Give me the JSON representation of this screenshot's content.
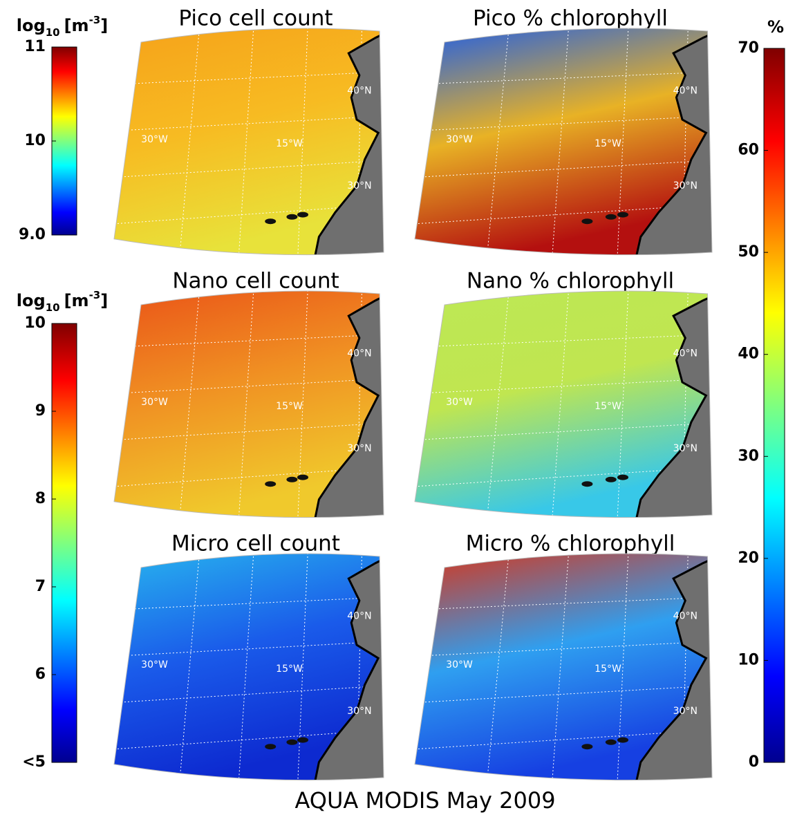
{
  "colorbars": [
    {
      "unit": {
        "base": "log",
        "sub": "10",
        "open": "[m",
        "sup": "-3",
        "close": "]"
      },
      "lim": [
        9,
        11
      ],
      "ticks": [
        11,
        10,
        {
          "value": 9,
          "label": "9.0"
        }
      ]
    },
    {
      "unit": {
        "base": "log",
        "sub": "10",
        "open": "[m",
        "sup": "-3",
        "close": "]"
      },
      "lim": [
        5,
        10
      ],
      "ticks": [
        10,
        9,
        8,
        7,
        6,
        {
          "value": 5,
          "label": "<5"
        }
      ]
    },
    {
      "unit": {
        "base": "%"
      },
      "lim": [
        0,
        70
      ],
      "ticks": [
        70,
        60,
        50,
        40,
        30,
        20,
        10,
        0
      ]
    }
  ],
  "panels": [
    {
      "title": "Pico cell count"
    },
    {
      "title": "Pico % chlorophyll"
    },
    {
      "title": "Nano cell count"
    },
    {
      "title": "Nano % chlorophyll"
    },
    {
      "title": "Micro cell count"
    },
    {
      "title": "Micro % chlorophyll"
    }
  ],
  "map_labels": {
    "lat_north": "40°N",
    "lon_west": "30°W",
    "lon_mid": "15°W",
    "lat_south": "30°N"
  },
  "footer": "AQUA MODIS May 2009"
}
